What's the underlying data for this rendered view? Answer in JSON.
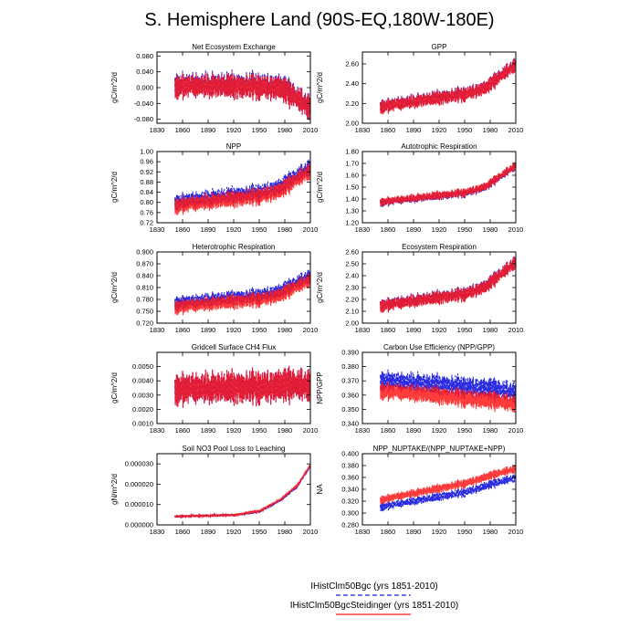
{
  "figure_title": "S. Hemisphere Land (90S-EQ,180W-180E)",
  "colors": {
    "series1": "#2020e0",
    "series2": "#ff1a1a",
    "overlap": "#6a1aa8"
  },
  "legend": [
    {
      "label": "IHistClm50Bgc (yrs 1851-2010)",
      "color": "#2020e0",
      "dash": "dashed"
    },
    {
      "label": "IHistClm50BgcSteidinger (yrs 1851-2010)",
      "color": "#ff1a1a",
      "dash": "solid"
    }
  ],
  "chart_data": [
    {
      "type": "line",
      "title": "Net Ecosystem Exchange",
      "ylabel": "gC/m^2/d",
      "xlim": [
        1830,
        2010
      ],
      "xticks": [
        1830,
        1860,
        1890,
        1920,
        1950,
        1980,
        2010
      ],
      "ylim": [
        -0.09,
        0.09
      ],
      "yticks": [
        "-0.080",
        "-0.040",
        "0.000",
        "0.040",
        "0.080"
      ],
      "ytick_values": [
        -0.08,
        -0.04,
        0,
        0.04,
        0.08
      ],
      "x_range": [
        1851,
        2010
      ],
      "series": [
        {
          "color": "#2020e0",
          "dash": "dashed",
          "trend": [
            [
              1851,
              0.005
            ],
            [
              1950,
              0.005
            ],
            [
              1975,
              0.0
            ],
            [
              2010,
              -0.05
            ]
          ],
          "amplitude": 0.032
        },
        {
          "color": "#ff1a1a",
          "dash": "solid",
          "trend": [
            [
              1851,
              0.003
            ],
            [
              1950,
              0.003
            ],
            [
              1975,
              -0.002
            ],
            [
              2010,
              -0.05
            ]
          ],
          "amplitude": 0.03
        }
      ]
    },
    {
      "type": "line",
      "title": "GPP",
      "ylabel": "gC/m^2/d",
      "xlim": [
        1830,
        2010
      ],
      "xticks": [
        1830,
        1860,
        1890,
        1920,
        1950,
        1980,
        2010
      ],
      "ylim": [
        2.0,
        2.72
      ],
      "yticks": [
        "2.00",
        "2.20",
        "2.40",
        "2.60"
      ],
      "ytick_values": [
        2.0,
        2.2,
        2.4,
        2.6
      ],
      "x_range": [
        1851,
        2010
      ],
      "series": [
        {
          "color": "#2020e0",
          "dash": "dashed",
          "trend": [
            [
              1851,
              2.17
            ],
            [
              1950,
              2.3
            ],
            [
              1975,
              2.36
            ],
            [
              2010,
              2.6
            ]
          ],
          "amplitude": 0.07
        },
        {
          "color": "#ff1a1a",
          "dash": "solid",
          "trend": [
            [
              1851,
              2.165
            ],
            [
              1950,
              2.295
            ],
            [
              1975,
              2.355
            ],
            [
              2010,
              2.595
            ]
          ],
          "amplitude": 0.07
        }
      ]
    },
    {
      "type": "line",
      "title": "NPP",
      "ylabel": "gC/m^2/d",
      "xlim": [
        1830,
        2010
      ],
      "xticks": [
        1830,
        1860,
        1890,
        1920,
        1950,
        1980,
        2010
      ],
      "ylim": [
        0.72,
        1.0
      ],
      "yticks": [
        "0.72",
        "0.76",
        "0.80",
        "0.84",
        "0.88",
        "0.92",
        "0.96",
        "1.00"
      ],
      "ytick_values": [
        0.72,
        0.76,
        0.8,
        0.84,
        0.88,
        0.92,
        0.96,
        1.0
      ],
      "x_range": [
        1851,
        2010
      ],
      "series": [
        {
          "color": "#2020e0",
          "dash": "dashed",
          "trend": [
            [
              1851,
              0.8
            ],
            [
              1950,
              0.84
            ],
            [
              1975,
              0.86
            ],
            [
              2010,
              0.94
            ]
          ],
          "amplitude": 0.032
        },
        {
          "color": "#ff1a1a",
          "dash": "solid",
          "trend": [
            [
              1851,
              0.785
            ],
            [
              1950,
              0.825
            ],
            [
              1975,
              0.845
            ],
            [
              2010,
              0.925
            ]
          ],
          "amplitude": 0.032
        }
      ]
    },
    {
      "type": "line",
      "title": "Autotrophic Respiration",
      "ylabel": "gC/m^2/d",
      "xlim": [
        1830,
        2010
      ],
      "xticks": [
        1830,
        1860,
        1890,
        1920,
        1950,
        1980,
        2010
      ],
      "ylim": [
        1.2,
        1.8
      ],
      "yticks": [
        "1.20",
        "1.30",
        "1.40",
        "1.50",
        "1.60",
        "1.70",
        "1.80"
      ],
      "ytick_values": [
        1.2,
        1.3,
        1.4,
        1.5,
        1.6,
        1.7,
        1.8
      ],
      "x_range": [
        1851,
        2010
      ],
      "series": [
        {
          "color": "#2020e0",
          "dash": "dashed",
          "trend": [
            [
              1851,
              1.37
            ],
            [
              1950,
              1.45
            ],
            [
              1975,
              1.5
            ],
            [
              2010,
              1.68
            ]
          ],
          "amplitude": 0.035
        },
        {
          "color": "#ff1a1a",
          "dash": "solid",
          "trend": [
            [
              1851,
              1.375
            ],
            [
              1950,
              1.455
            ],
            [
              1975,
              1.505
            ],
            [
              2010,
              1.685
            ]
          ],
          "amplitude": 0.035
        }
      ]
    },
    {
      "type": "line",
      "title": "Heterotrophic Respiration",
      "ylabel": "gC/m^2/d",
      "xlim": [
        1830,
        2010
      ],
      "xticks": [
        1830,
        1860,
        1890,
        1920,
        1950,
        1980,
        2010
      ],
      "ylim": [
        0.72,
        0.9
      ],
      "yticks": [
        "0.720",
        "0.750",
        "0.780",
        "0.810",
        "0.840",
        "0.870",
        "0.900"
      ],
      "ytick_values": [
        0.72,
        0.75,
        0.78,
        0.81,
        0.84,
        0.87,
        0.9
      ],
      "x_range": [
        1851,
        2010
      ],
      "series": [
        {
          "color": "#2020e0",
          "dash": "dashed",
          "trend": [
            [
              1851,
              0.77
            ],
            [
              1950,
              0.79
            ],
            [
              1975,
              0.8
            ],
            [
              2010,
              0.84
            ]
          ],
          "amplitude": 0.018
        },
        {
          "color": "#ff1a1a",
          "dash": "solid",
          "trend": [
            [
              1851,
              0.76
            ],
            [
              1950,
              0.78
            ],
            [
              1975,
              0.79
            ],
            [
              2010,
              0.83
            ]
          ],
          "amplitude": 0.018
        }
      ]
    },
    {
      "type": "line",
      "title": "Ecosystem Respiration",
      "ylabel": "gC/m^2/d",
      "xlim": [
        1830,
        2010
      ],
      "xticks": [
        1830,
        1860,
        1890,
        1920,
        1950,
        1980,
        2010
      ],
      "ylim": [
        2.0,
        2.6
      ],
      "yticks": [
        "2.00",
        "2.10",
        "2.20",
        "2.30",
        "2.40",
        "2.50",
        "2.60"
      ],
      "ytick_values": [
        2.0,
        2.1,
        2.2,
        2.3,
        2.4,
        2.5,
        2.6
      ],
      "x_range": [
        1851,
        2010
      ],
      "series": [
        {
          "color": "#2020e0",
          "dash": "dashed",
          "trend": [
            [
              1851,
              2.15
            ],
            [
              1950,
              2.25
            ],
            [
              1975,
              2.31
            ],
            [
              2010,
              2.52
            ]
          ],
          "amplitude": 0.055
        },
        {
          "color": "#ff1a1a",
          "dash": "solid",
          "trend": [
            [
              1851,
              2.145
            ],
            [
              1950,
              2.245
            ],
            [
              1975,
              2.305
            ],
            [
              2010,
              2.515
            ]
          ],
          "amplitude": 0.055
        }
      ]
    },
    {
      "type": "line",
      "title": "Gridcell Surface CH4 Flux",
      "ylabel": "gC/m^2/d",
      "xlim": [
        1830,
        2010
      ],
      "xticks": [
        1830,
        1860,
        1890,
        1920,
        1950,
        1980,
        2010
      ],
      "ylim": [
        0.001,
        0.006
      ],
      "yticks": [
        "0.0010",
        "0.0020",
        "0.0030",
        "0.0040",
        "0.0050"
      ],
      "ytick_values": [
        0.001,
        0.002,
        0.003,
        0.004,
        0.005
      ],
      "x_range": [
        1851,
        2010
      ],
      "series": [
        {
          "color": "#2020e0",
          "dash": "dashed",
          "trend": [
            [
              1851,
              0.0034
            ],
            [
              2010,
              0.0037
            ]
          ],
          "amplitude": 0.0011
        },
        {
          "color": "#ff1a1a",
          "dash": "solid",
          "trend": [
            [
              1851,
              0.0034
            ],
            [
              2010,
              0.0037
            ]
          ],
          "amplitude": 0.0011
        }
      ]
    },
    {
      "type": "line",
      "title": "Carbon Use Efficiency (NPP/GPP)",
      "ylabel": "NPP/GPP",
      "xlim": [
        1830,
        2010
      ],
      "xticks": [
        1830,
        1860,
        1890,
        1920,
        1950,
        1980,
        2010
      ],
      "ylim": [
        0.34,
        0.39
      ],
      "yticks": [
        "0.340",
        "0.350",
        "0.360",
        "0.370",
        "0.380",
        "0.390"
      ],
      "ytick_values": [
        0.34,
        0.35,
        0.36,
        0.37,
        0.38,
        0.39
      ],
      "x_range": [
        1851,
        2010
      ],
      "series": [
        {
          "color": "#2020e0",
          "dash": "dashed",
          "trend": [
            [
              1851,
              0.37
            ],
            [
              1950,
              0.366
            ],
            [
              2010,
              0.362
            ]
          ],
          "amplitude": 0.007
        },
        {
          "color": "#ff1a1a",
          "dash": "solid",
          "trend": [
            [
              1851,
              0.363
            ],
            [
              1950,
              0.358
            ],
            [
              2010,
              0.354
            ]
          ],
          "amplitude": 0.006
        }
      ]
    },
    {
      "type": "line",
      "title": "Soil NO3 Pool Loss to Leaching",
      "ylabel": "gN/m^2/d",
      "xlim": [
        1830,
        2010
      ],
      "xticks": [
        1830,
        1860,
        1890,
        1920,
        1950,
        1980,
        2010
      ],
      "ylim": [
        0.0,
        3.5e-05
      ],
      "yticks": [
        "0.000000",
        "0.000010",
        "0.000020",
        "0.000030"
      ],
      "ytick_values": [
        0.0,
        1e-05,
        2e-05,
        3e-05
      ],
      "x_range": [
        1851,
        2010
      ],
      "series": [
        {
          "color": "#2020e0",
          "dash": "dashed",
          "trend": [
            [
              1851,
              4.2e-06
            ],
            [
              1920,
              4.8e-06
            ],
            [
              1950,
              6.5e-06
            ],
            [
              1975,
              1.2e-05
            ],
            [
              1995,
              1.9e-05
            ],
            [
              2010,
              2.9e-05
            ]
          ],
          "amplitude": 6e-07
        },
        {
          "color": "#ff1a1a",
          "dash": "solid",
          "trend": [
            [
              1851,
              4.2e-06
            ],
            [
              1920,
              4.8e-06
            ],
            [
              1950,
              6.8e-06
            ],
            [
              1975,
              1.25e-05
            ],
            [
              1995,
              1.95e-05
            ],
            [
              2010,
              2.95e-05
            ]
          ],
          "amplitude": 6e-07
        }
      ]
    },
    {
      "type": "line",
      "title": "NPP_NUPTAKE/(NPP_NUPTAKE+NPP)",
      "ylabel": "NA",
      "xlim": [
        1830,
        2010
      ],
      "xticks": [
        1830,
        1860,
        1890,
        1920,
        1950,
        1980,
        2010
      ],
      "ylim": [
        0.28,
        0.4
      ],
      "yticks": [
        "0.280",
        "0.300",
        "0.320",
        "0.340",
        "0.360",
        "0.380",
        "0.400"
      ],
      "ytick_values": [
        0.28,
        0.3,
        0.32,
        0.34,
        0.36,
        0.38,
        0.4
      ],
      "x_range": [
        1851,
        2010
      ],
      "series": [
        {
          "color": "#2020e0",
          "dash": "dashed",
          "trend": [
            [
              1851,
              0.31
            ],
            [
              1950,
              0.335
            ],
            [
              2010,
              0.36
            ]
          ],
          "amplitude": 0.007
        },
        {
          "color": "#ff1a1a",
          "dash": "solid",
          "trend": [
            [
              1851,
              0.322
            ],
            [
              1950,
              0.35
            ],
            [
              2010,
              0.375
            ]
          ],
          "amplitude": 0.007
        }
      ]
    }
  ]
}
